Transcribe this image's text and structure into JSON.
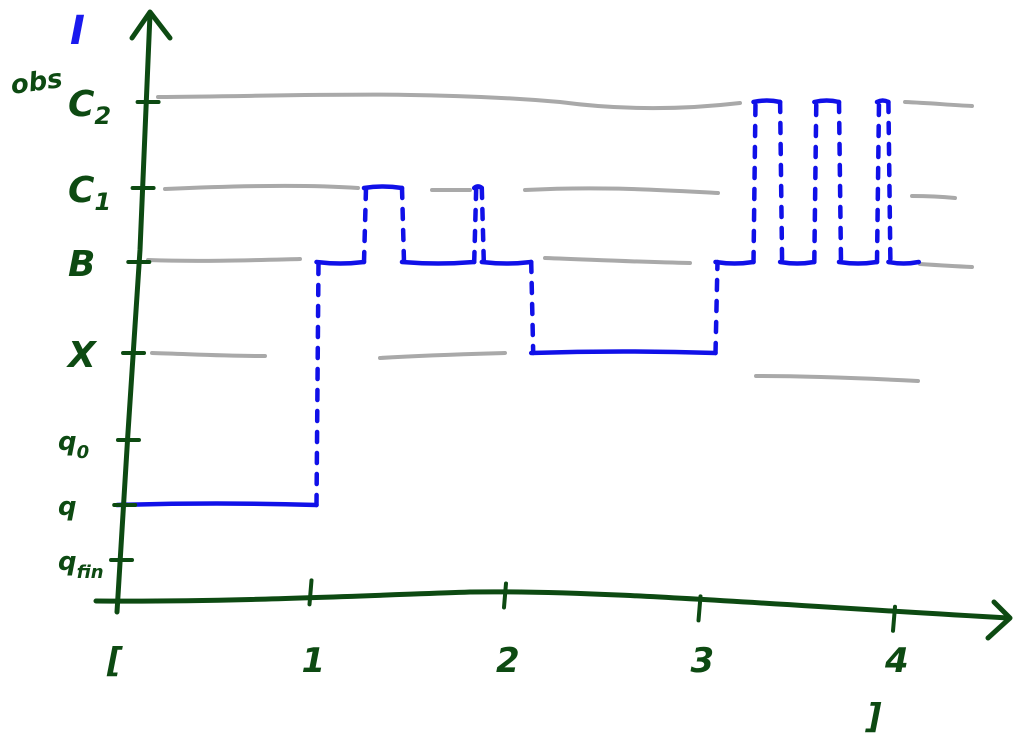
{
  "chart_data": {
    "type": "line",
    "title": "",
    "y_axis_letter": "I",
    "y_axis_name": "obs",
    "y_levels": [
      {
        "id": "q_fin",
        "label": "q",
        "subscript": "fin"
      },
      {
        "id": "q",
        "label": "q",
        "subscript": ""
      },
      {
        "id": "q_0",
        "label": "q",
        "subscript": "0"
      },
      {
        "id": "X",
        "label": "X",
        "subscript": ""
      },
      {
        "id": "B",
        "label": "B",
        "subscript": ""
      },
      {
        "id": "C1",
        "label": "C",
        "subscript": "1"
      },
      {
        "id": "C2",
        "label": "C",
        "subscript": "2"
      }
    ],
    "reference_levels": [
      "X",
      "B",
      "C1",
      "C2"
    ],
    "x_ticks": [
      {
        "value": 0,
        "label": "["
      },
      {
        "value": 1,
        "label": "1"
      },
      {
        "value": 2,
        "label": "2"
      },
      {
        "value": 3,
        "label": "3"
      },
      {
        "value": 4,
        "label": "4"
      }
    ],
    "x_end_label": "]",
    "xlim": [
      0,
      4.6
    ],
    "series": [
      {
        "style": "piecewise-constant",
        "color": "#1010e8",
        "segments": [
          {
            "x0": 0.0,
            "x1": 1.05,
            "level": "q"
          },
          {
            "x0": 1.05,
            "x1": 1.3,
            "level": "B"
          },
          {
            "x0": 1.3,
            "x1": 1.5,
            "level": "C1"
          },
          {
            "x0": 1.5,
            "x1": 1.88,
            "level": "B"
          },
          {
            "x0": 1.88,
            "x1": 1.92,
            "level": "C1"
          },
          {
            "x0": 1.92,
            "x1": 2.18,
            "level": "B"
          },
          {
            "x0": 2.18,
            "x1": 3.15,
            "level": "X"
          },
          {
            "x0": 3.15,
            "x1": 3.35,
            "level": "B"
          },
          {
            "x0": 3.35,
            "x1": 3.49,
            "level": "C2"
          },
          {
            "x0": 3.49,
            "x1": 3.67,
            "level": "B"
          },
          {
            "x0": 3.67,
            "x1": 3.8,
            "level": "C2"
          },
          {
            "x0": 3.8,
            "x1": 4.0,
            "level": "B"
          },
          {
            "x0": 4.0,
            "x1": 4.06,
            "level": "C2"
          },
          {
            "x0": 4.06,
            "x1": 4.22,
            "level": "B"
          }
        ]
      }
    ]
  }
}
